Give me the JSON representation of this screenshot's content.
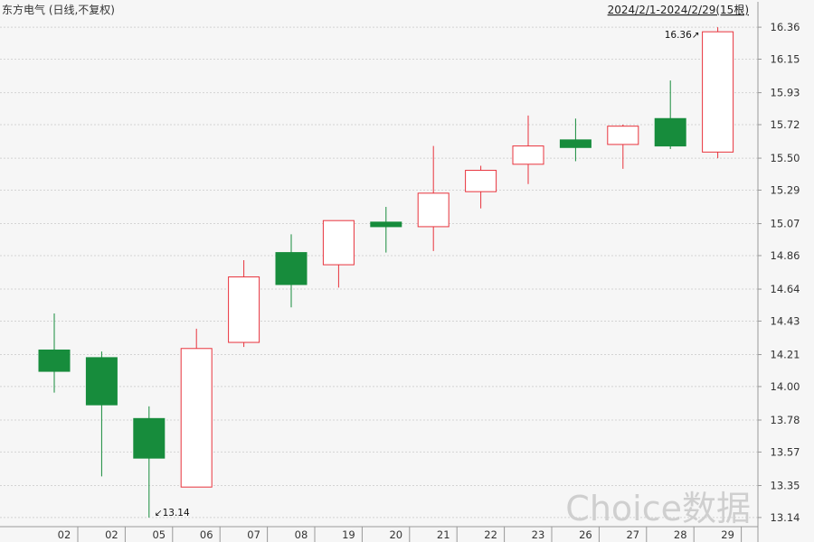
{
  "chart_data": {
    "type": "candlestick",
    "title": "东方电气 (日线,不复权)",
    "date_range": "2024/2/1-2024/2/29(15根)",
    "watermark": "Choice数据",
    "ylim": [
      13.08,
      16.42
    ],
    "y_ticks": [
      "16.36",
      "16.15",
      "15.93",
      "15.72",
      "15.50",
      "15.29",
      "15.07",
      "14.86",
      "14.64",
      "14.43",
      "14.21",
      "14.00",
      "13.78",
      "13.57",
      "13.35",
      "13.14"
    ],
    "grid": true,
    "candles": [
      {
        "label": "02",
        "open": 14.24,
        "close": 14.1,
        "high": 14.48,
        "low": 13.96
      },
      {
        "label": "02",
        "open": 14.19,
        "close": 13.88,
        "high": 14.23,
        "low": 13.41
      },
      {
        "label": "05",
        "open": 13.79,
        "close": 13.53,
        "high": 13.87,
        "low": 13.14
      },
      {
        "label": "06",
        "open": 13.34,
        "close": 14.25,
        "high": 14.38,
        "low": 13.34
      },
      {
        "label": "07",
        "open": 14.29,
        "close": 14.72,
        "high": 14.83,
        "low": 14.26
      },
      {
        "label": "08",
        "open": 14.88,
        "close": 14.67,
        "high": 15.0,
        "low": 14.52
      },
      {
        "label": "19",
        "open": 14.8,
        "close": 15.09,
        "high": 15.09,
        "low": 14.65
      },
      {
        "label": "20",
        "open": 15.08,
        "close": 15.05,
        "high": 15.18,
        "low": 14.88
      },
      {
        "label": "21",
        "open": 15.05,
        "close": 15.27,
        "high": 15.58,
        "low": 14.89
      },
      {
        "label": "22",
        "open": 15.28,
        "close": 15.42,
        "high": 15.45,
        "low": 15.17
      },
      {
        "label": "23",
        "open": 15.46,
        "close": 15.58,
        "high": 15.78,
        "low": 15.33
      },
      {
        "label": "26",
        "open": 15.62,
        "close": 15.57,
        "high": 15.76,
        "low": 15.48
      },
      {
        "label": "27",
        "open": 15.59,
        "close": 15.71,
        "high": 15.72,
        "low": 15.43
      },
      {
        "label": "28",
        "open": 15.76,
        "close": 15.58,
        "high": 16.01,
        "low": 15.56
      },
      {
        "label": "29",
        "open": 15.54,
        "close": 16.33,
        "high": 16.36,
        "low": 15.5
      }
    ],
    "annotations": [
      {
        "text": "↙13.14",
        "candle": 2,
        "value": 13.14
      },
      {
        "text": "16.36↗",
        "candle": 14,
        "value": 16.36
      }
    ],
    "colors": {
      "up": "#e8333c",
      "down": "#178c3c",
      "grid": "#d4d4d4",
      "axis": "#999999"
    }
  }
}
